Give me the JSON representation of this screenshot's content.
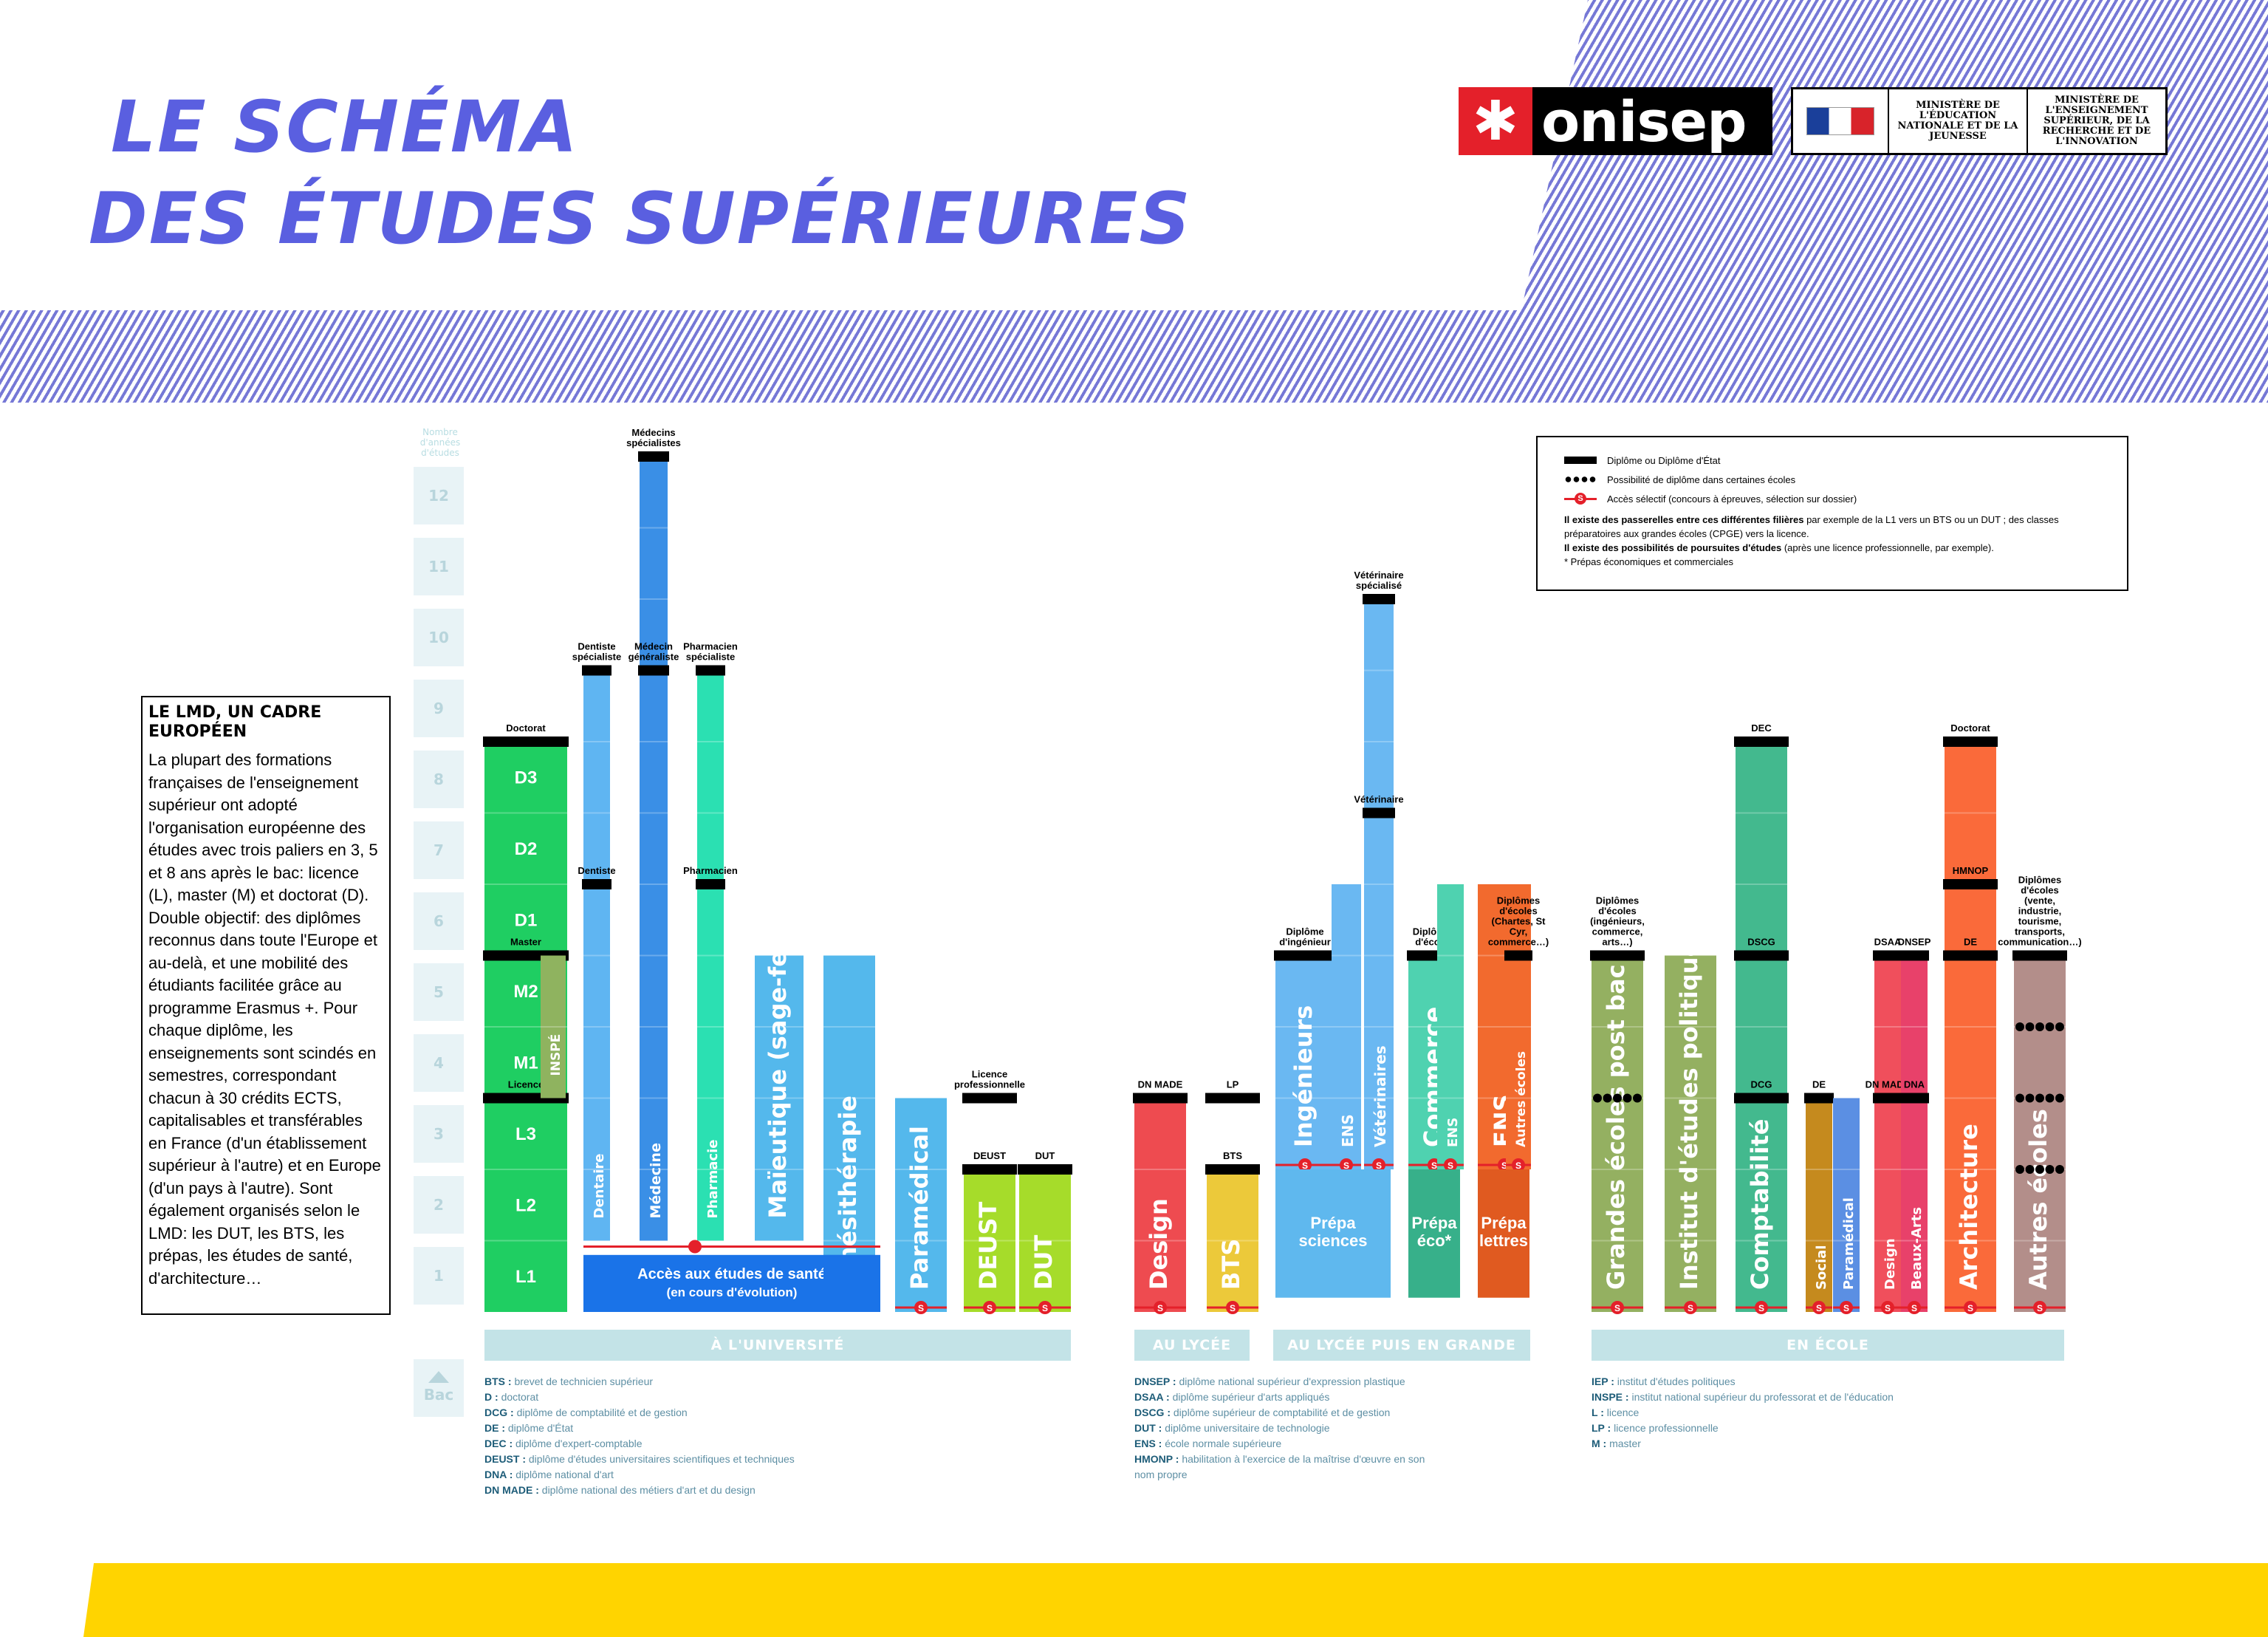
{
  "header": {
    "title_line1": "LE SCHÉMA",
    "title_line2": "DES ÉTUDES SUPÉRIEURES",
    "logo_text": "onisep",
    "logo_mark": "✱",
    "ministry1": "MINISTÈRE DE L'ÉDUCATION NATIONALE ET DE LA JEUNESSE",
    "ministry2": "MINISTÈRE DE L'ENSEIGNEMENT SUPÉRIEUR, DE LA RECHERCHE ET DE L'INNOVATION"
  },
  "years": {
    "label": "Nombre d'années d'études",
    "values": [
      "1",
      "2",
      "3",
      "4",
      "5",
      "6",
      "7",
      "8",
      "9",
      "10",
      "11",
      "12"
    ],
    "bac": "Bac"
  },
  "lmd": {
    "title": "LE LMD, UN CADRE EUROPÉEN",
    "body": "La plupart des formations françaises de l'enseignement supérieur ont adopté l'organisation européenne des études avec trois paliers en 3, 5 et 8 ans après le bac: licence (L), master (M) et doctorat (D). Double objectif: des diplômes reconnus dans toute l'Europe et au-delà, et une mobilité des étudiants facilitée grâce au programme Erasmus +. Pour chaque diplôme, les enseignements sont scindés en semestres, correspondant chacun à 30 crédits ECTS, capitalisables et transférables en France (d'un établissement supérieur à l'autre) et en Europe (d'un pays à l'autre). Sont également organisés selon le LMD: les DUT, les BTS, les prépas, les études de santé, d'architecture…"
  },
  "legend": {
    "diploma": "Diplôme ou Diplôme d'État",
    "dots": "Possibilité de diplôme dans certaines écoles",
    "selective": "Accès sélectif (concours à épreuves, sélection sur dossier)",
    "passerelles_bold": "Il existe des passerelles entre ces différentes filières",
    "passerelles_text": " par exemple de la L1 vers un BTS ou un DUT ; des classes préparatoires aux grandes écoles (CPGE)  vers la licence.",
    "poursuites_bold": "Il existe des possibilités de poursuites d'études",
    "poursuites_text": " (après une licence professionnelle, par exemple).",
    "note": "* Prépas économiques et commerciales"
  },
  "bands": {
    "universite": "À L'UNIVERSITÉ",
    "lycee": "AU LYCÉE",
    "lycee_ecole": "AU LYCÉE PUIS EN GRANDE ÉCOLE",
    "ecole": "EN ÉCOLE"
  },
  "sante_box": {
    "line1": "Accès aux études de santé",
    "line2": "(en cours d'évolution)"
  },
  "prepa": {
    "sciences": "Prépa sciences",
    "eco": "Prépa éco*",
    "lettres": "Prépa lettres"
  },
  "colors": {
    "title": "#5a5fe0",
    "stripes": "#7678d6",
    "selective": "#e4202a",
    "band": "#c3e3e7",
    "yellow": "#ffd400"
  },
  "abbreviations": {
    "col1": [
      {
        "k": "BTS",
        "v": "brevet de technicien supérieur"
      },
      {
        "k": "D",
        "v": "doctorat"
      },
      {
        "k": "DCG",
        "v": "diplôme de comptabilité et de gestion"
      },
      {
        "k": "DE",
        "v": "diplôme d'État"
      },
      {
        "k": "DEC",
        "v": "diplôme d'expert-comptable"
      },
      {
        "k": "DEUST",
        "v": "diplôme d'études universitaires scientifiques et techniques"
      },
      {
        "k": "DNA",
        "v": "diplôme national d'art"
      },
      {
        "k": "DN MADE",
        "v": "diplôme national des métiers d'art et du design"
      }
    ],
    "col2": [
      {
        "k": "DNSEP",
        "v": "diplôme national supérieur d'expression plastique"
      },
      {
        "k": "DSAA",
        "v": "diplôme supérieur d'arts appliqués"
      },
      {
        "k": "DSCG",
        "v": "diplôme supérieur de comptabilité et de gestion"
      },
      {
        "k": "DUT",
        "v": "diplôme universitaire de technologie"
      },
      {
        "k": "ENS",
        "v": "école normale supérieure"
      },
      {
        "k": "HMONP",
        "v": "habilitation à l'exercice de la maîtrise d'œuvre en son nom propre"
      }
    ],
    "col3": [
      {
        "k": "IEP",
        "v": "institut d'études politiques"
      },
      {
        "k": "INSPE",
        "v": "institut national supérieur du professorat et de l'éducation"
      },
      {
        "k": "L",
        "v": "licence"
      },
      {
        "k": "LP",
        "v": "licence professionnelle"
      },
      {
        "k": "M",
        "v": "master"
      }
    ]
  },
  "chart_data": {
    "type": "diagram",
    "columns": [
      {
        "name": "LMD",
        "years": [
          0,
          8
        ],
        "color": "#1fce62",
        "segments": [
          {
            "label": "L1",
            "from": 0,
            "to": 1
          },
          {
            "label": "L2",
            "from": 1,
            "to": 2
          },
          {
            "label": "L3",
            "from": 2,
            "to": 3
          },
          {
            "label": "M1",
            "from": 3,
            "to": 4
          },
          {
            "label": "M2",
            "from": 4,
            "to": 5
          },
          {
            "label": "D1",
            "from": 5,
            "to": 6
          },
          {
            "label": "D2",
            "from": 6,
            "to": 7
          },
          {
            "label": "D3",
            "from": 7,
            "to": 8
          }
        ],
        "diplomas": [
          {
            "label": "Licence",
            "at": 3
          },
          {
            "label": "Master",
            "at": 5
          },
          {
            "label": "Doctorat",
            "at": 8
          }
        ]
      },
      {
        "name": "INSPÉ",
        "years": [
          3,
          5
        ],
        "color": "#8fb35f"
      },
      {
        "name": "Dentaire",
        "years": [
          1,
          9
        ],
        "color": "#5fb5f2",
        "diplomas": [
          {
            "label": "Dentiste",
            "at": 6
          },
          {
            "label": "Dentiste spécialiste",
            "at": 9
          }
        ]
      },
      {
        "name": "Médecine",
        "years": [
          1,
          12
        ],
        "color": "#3a8fe6",
        "diplomas": [
          {
            "label": "Médecin généraliste",
            "at": 9
          },
          {
            "label": "Médecins spécialistes",
            "at": 12
          }
        ]
      },
      {
        "name": "Pharmacie",
        "years": [
          1,
          9
        ],
        "color": "#2be0b2",
        "diplomas": [
          {
            "label": "Pharmacien",
            "at": 6
          },
          {
            "label": "Pharmacien spécialiste",
            "at": 9
          }
        ]
      },
      {
        "name": "Maïeutique (sage-femme)",
        "years": [
          1,
          5
        ],
        "color": "#54b8ec"
      },
      {
        "name": "Kinésithérapie",
        "years": [
          0,
          5
        ],
        "color": "#54b8ec"
      },
      {
        "name": "Paramédical",
        "years": [
          0,
          3
        ],
        "color": "#54b8ec"
      },
      {
        "name": "DEUST",
        "years": [
          0,
          2
        ],
        "color": "#a6dc2a",
        "diplomas": [
          {
            "label": "DEUST",
            "at": 2
          },
          {
            "label": "Licence professionnelle",
            "at": 3
          }
        ]
      },
      {
        "name": "DUT",
        "years": [
          0,
          2
        ],
        "color": "#a6dc2a",
        "diplomas": [
          {
            "label": "DUT",
            "at": 2
          }
        ]
      },
      {
        "name": "Design",
        "years": [
          0,
          3
        ],
        "color": "#ee4b50",
        "diplomas": [
          {
            "label": "DN MADE",
            "at": 3
          }
        ]
      },
      {
        "name": "BTS",
        "years": [
          0,
          2
        ],
        "color": "#ecc93a",
        "diplomas": [
          {
            "label": "BTS",
            "at": 2
          },
          {
            "label": "LP",
            "at": 3
          }
        ]
      },
      {
        "name": "Ingénieurs",
        "years": [
          2,
          5
        ],
        "color": "#6ab8f2",
        "diplomas": [
          {
            "label": "Diplôme d'ingénieur",
            "at": 5
          }
        ]
      },
      {
        "name": "ENS",
        "years": [
          2,
          6
        ],
        "color": "#6ab8f2"
      },
      {
        "name": "Vétérinaires",
        "years": [
          2,
          10
        ],
        "color": "#6ab8f2",
        "diplomas": [
          {
            "label": "Vétérinaire",
            "at": 7
          },
          {
            "label": "Vétérinaire spécialisé",
            "at": 10
          }
        ]
      },
      {
        "name": "Commerce",
        "years": [
          2,
          5
        ],
        "color": "#4fd2b0",
        "diplomas": [
          {
            "label": "Diplômes d'écoles",
            "at": 5
          }
        ]
      },
      {
        "name": "ENS",
        "years": [
          2,
          6
        ],
        "color": "#4fd2b0"
      },
      {
        "name": "ENS",
        "years": [
          2,
          6
        ],
        "color": "#f26a2e"
      },
      {
        "name": "Autres écoles",
        "years": [
          2,
          5
        ],
        "color": "#f26a2e",
        "diplomas": [
          {
            "label": "Diplômes d'écoles (Chartes, St Cyr, commerce…)",
            "at": 5
          }
        ]
      },
      {
        "name": "Grandes écoles post bac",
        "years": [
          0,
          5
        ],
        "color": "#94b061",
        "diplomas": [
          {
            "label": "Diplômes d'écoles (ingénieurs, commerce, arts…)",
            "at": 5
          }
        ]
      },
      {
        "name": "Institut d'études politiques",
        "years": [
          0,
          5
        ],
        "color": "#94b061"
      },
      {
        "name": "Comptabilité",
        "years": [
          0,
          8
        ],
        "color": "#43b98e",
        "diplomas": [
          {
            "label": "DCG",
            "at": 3
          },
          {
            "label": "DSCG",
            "at": 5
          },
          {
            "label": "DEC",
            "at": 8
          }
        ]
      },
      {
        "name": "Social",
        "years": [
          0,
          3
        ],
        "color": "#c58a1e",
        "diplomas": [
          {
            "label": "DE",
            "at": 3
          }
        ]
      },
      {
        "name": "Paramédical",
        "years": [
          0,
          3
        ],
        "color": "#5b8fe3"
      },
      {
        "name": "Design",
        "years": [
          0,
          5
        ],
        "color": "#f04f5c",
        "diplomas": [
          {
            "label": "DN MADE",
            "at": 3
          },
          {
            "label": "DSAA",
            "at": 5
          }
        ]
      },
      {
        "name": "Beaux-Arts",
        "years": [
          0,
          5
        ],
        "color": "#e8416a",
        "diplomas": [
          {
            "label": "DNA",
            "at": 3
          },
          {
            "label": "DNSEP",
            "at": 5
          }
        ]
      },
      {
        "name": "Architecture",
        "years": [
          0,
          8
        ],
        "color": "#fa6a3a",
        "diplomas": [
          {
            "label": "DE",
            "at": 5
          },
          {
            "label": "HMNOP",
            "at": 6
          },
          {
            "label": "Doctorat",
            "at": 8
          }
        ]
      },
      {
        "name": "Autres écoles",
        "years": [
          0,
          5
        ],
        "color": "#b38e8a",
        "diplomas": [
          {
            "label": "Diplômes d'écoles (vente, industrie, tourisme, transports, communication…)",
            "at": 5
          }
        ]
      }
    ]
  }
}
